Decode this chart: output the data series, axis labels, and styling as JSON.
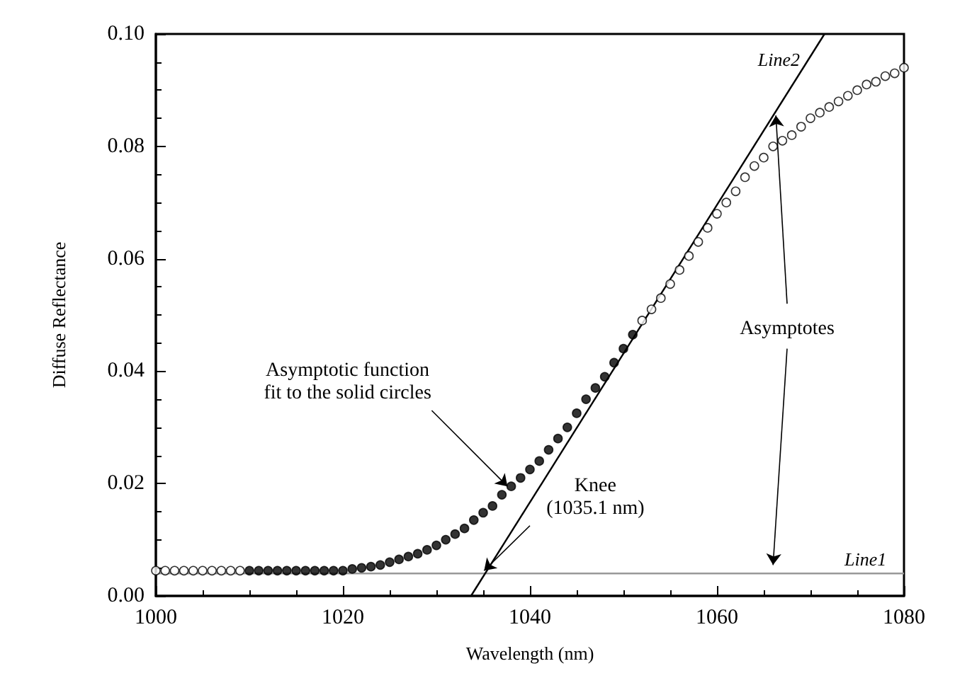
{
  "chart_data": {
    "type": "scatter",
    "xlabel": "Wavelength (nm)",
    "ylabel": "Diffuse Reflectance",
    "xlim": [
      1000,
      1080
    ],
    "xticks": [
      1000,
      1020,
      1040,
      1060,
      1080
    ],
    "ylim": [
      0,
      0.1
    ],
    "yticks": [
      {
        "value": 0,
        "label": "0.00"
      },
      {
        "value": 0.02,
        "label": "0.02"
      },
      {
        "value": 0.04,
        "label": "0.04"
      },
      {
        "value": 0.06,
        "label": "0.06"
      },
      {
        "value": 0.08,
        "label": "0.08"
      },
      {
        "value": 0.1,
        "label": "0.10"
      }
    ],
    "grid": false,
    "legend": false,
    "marker": "circle",
    "series": [
      {
        "color": "#ffffff",
        "x": [
          1000,
          1001,
          1002,
          1003,
          1004,
          1005,
          1006,
          1007,
          1008,
          1009,
          1052,
          1053,
          1054,
          1055,
          1056,
          1057,
          1058,
          1059,
          1060,
          1061,
          1062,
          1063,
          1064,
          1065,
          1066,
          1067,
          1068,
          1069,
          1070,
          1071,
          1072,
          1073,
          1074,
          1075,
          1076,
          1077,
          1078,
          1079,
          1080
        ],
        "values": [
          0.0045,
          0.0045,
          0.0045,
          0.0045,
          0.0045,
          0.0045,
          0.0045,
          0.0045,
          0.0045,
          0.0045,
          0.049,
          0.051,
          0.053,
          0.0555,
          0.058,
          0.0605,
          0.063,
          0.0655,
          0.068,
          0.07,
          0.072,
          0.0745,
          0.0765,
          0.078,
          0.08,
          0.081,
          0.082,
          0.0835,
          0.085,
          0.086,
          0.087,
          0.088,
          0.089,
          0.09,
          0.091,
          0.0915,
          0.0925,
          0.093,
          0.094
        ]
      },
      {
        "color": "#000000",
        "x": [
          1010,
          1011,
          1012,
          1013,
          1014,
          1015,
          1016,
          1017,
          1018,
          1019,
          1020,
          1021,
          1022,
          1023,
          1024,
          1025,
          1026,
          1027,
          1028,
          1029,
          1030,
          1031,
          1032,
          1033,
          1034,
          1035,
          1036,
          1037,
          1038,
          1039,
          1040,
          1041,
          1042,
          1043,
          1044,
          1045,
          1046,
          1047,
          1048,
          1049,
          1050,
          1051
        ],
        "values": [
          0.0045,
          0.0045,
          0.0045,
          0.0045,
          0.0045,
          0.0045,
          0.0045,
          0.0045,
          0.0045,
          0.0045,
          0.0045,
          0.0048,
          0.005,
          0.0052,
          0.0055,
          0.006,
          0.0065,
          0.007,
          0.0075,
          0.0082,
          0.009,
          0.01,
          0.011,
          0.012,
          0.0135,
          0.0148,
          0.016,
          0.018,
          0.0195,
          0.021,
          0.0225,
          0.024,
          0.026,
          0.028,
          0.03,
          0.0325,
          0.035,
          0.037,
          0.039,
          0.0415,
          0.044,
          0.0465
        ]
      },
      {
        "type": "line",
        "name": "Line1",
        "color": "#999999",
        "marker": "none",
        "x": [
          1000,
          1080
        ],
        "values": [
          0.004,
          0.004
        ]
      },
      {
        "type": "line",
        "name": "Line2",
        "color": "#000000",
        "marker": "none",
        "x": [
          1033.7,
          1071.5
        ],
        "values": [
          0,
          0.1
        ]
      }
    ],
    "annotations": [
      {
        "text": "Asymptotic function fit to the solid circles",
        "x": 1037.6,
        "y": 0.0195
      },
      {
        "text": "Knee (1035.1 nm)",
        "x": 1035.1,
        "y": 0.0045
      },
      {
        "text": "Asymptotes",
        "x": 1066.3,
        "y": 0.0855
      }
    ]
  }
}
